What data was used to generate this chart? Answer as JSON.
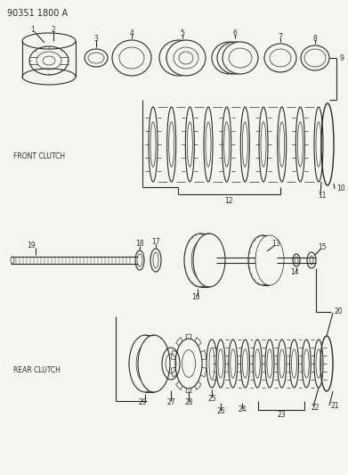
{
  "title": "90351 1800 A",
  "bg": "#f5f5f0",
  "lc": "#2a2a2a",
  "front_clutch_label": "FRONT CLUTCH",
  "rear_clutch_label": "REAR CLUTCH",
  "fig_width": 3.91,
  "fig_height": 5.33,
  "dpi": 100
}
